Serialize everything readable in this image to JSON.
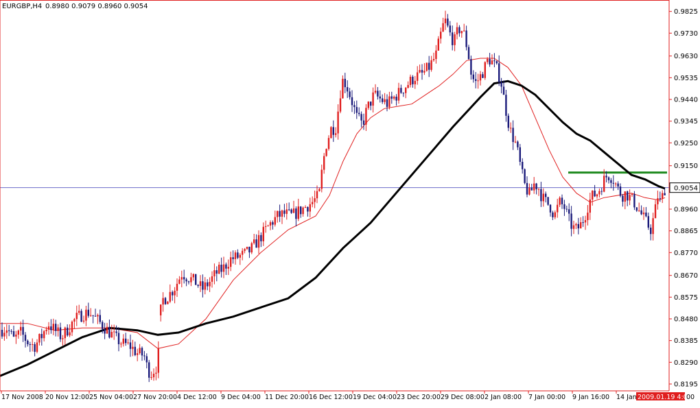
{
  "header": {
    "symbol_label": "EURGBP,H4",
    "ohlc_label": "0.8980 0.9079 0.8960 0.9054"
  },
  "colors": {
    "background": "#ffffff",
    "axis": "#e01e1e",
    "bull_candle": "#e01e1e",
    "bear_candle": "#1a1a7a",
    "ma_fast": "#e01e1e",
    "ma_slow": "#000000",
    "resistance": "#1e8a1e",
    "price_line": "#6a6ac8",
    "price_tag_bg": "#ffffff"
  },
  "chart_data": {
    "type": "candlestick",
    "symbol": "EURGBP",
    "timeframe": "H4",
    "ylim": [
      0.8165,
      0.9875
    ],
    "y_ticks": [
      0.9825,
      0.973,
      0.963,
      0.9535,
      0.944,
      0.9345,
      0.925,
      0.915,
      0.896,
      0.8865,
      0.877,
      0.867,
      0.8575,
      0.848,
      0.8385,
      0.829,
      0.8195
    ],
    "current_price": 0.9054,
    "current_price_label": "0.9054",
    "x_labels": [
      "17 Nov 2008",
      "20 Nov 12:00",
      "25 Nov 04:00",
      "27 Nov 20:00",
      "4 Dec 12:00",
      "9 Dec 04:00",
      "11 Dec 20:00",
      "16 Dec 12:00",
      "19 Dec 04:00",
      "23 Dec 20:00",
      "29 Dec 08:00",
      "2 Jan 08:00",
      "7 Jan 00:00",
      "9 Jan 16:00",
      "14 Jan"
    ],
    "x_label_cursor": "2009.01.19 4:00",
    "x_label_trailing": "00",
    "resistance_level": 0.912,
    "price_path": [
      [
        0,
        0.843
      ],
      [
        10,
        0.844
      ],
      [
        20,
        0.839
      ],
      [
        30,
        0.842
      ],
      [
        40,
        0.838
      ],
      [
        50,
        0.836
      ],
      [
        60,
        0.84
      ],
      [
        70,
        0.846
      ],
      [
        80,
        0.843
      ],
      [
        90,
        0.84
      ],
      [
        100,
        0.844
      ],
      [
        110,
        0.848
      ],
      [
        120,
        0.85
      ],
      [
        130,
        0.851
      ],
      [
        140,
        0.848
      ],
      [
        150,
        0.845
      ],
      [
        160,
        0.842
      ],
      [
        170,
        0.839
      ],
      [
        180,
        0.837
      ],
      [
        190,
        0.836
      ],
      [
        200,
        0.833
      ],
      [
        210,
        0.832
      ],
      [
        215,
        0.826
      ],
      [
        220,
        0.824
      ],
      [
        225,
        0.826
      ],
      [
        230,
        0.828
      ],
      [
        235,
        0.856
      ],
      [
        245,
        0.858
      ],
      [
        255,
        0.862
      ],
      [
        265,
        0.868
      ],
      [
        275,
        0.866
      ],
      [
        285,
        0.864
      ],
      [
        295,
        0.861
      ],
      [
        305,
        0.864
      ],
      [
        315,
        0.868
      ],
      [
        325,
        0.87
      ],
      [
        335,
        0.874
      ],
      [
        345,
        0.875
      ],
      [
        355,
        0.876
      ],
      [
        365,
        0.878
      ],
      [
        375,
        0.882
      ],
      [
        385,
        0.886
      ],
      [
        395,
        0.89
      ],
      [
        405,
        0.893
      ],
      [
        415,
        0.894
      ],
      [
        425,
        0.893
      ],
      [
        435,
        0.895
      ],
      [
        445,
        0.897
      ],
      [
        455,
        0.899
      ],
      [
        465,
        0.902
      ],
      [
        470,
        0.915
      ],
      [
        475,
        0.924
      ],
      [
        482,
        0.931
      ],
      [
        490,
        0.932
      ],
      [
        495,
        0.946
      ],
      [
        500,
        0.953
      ],
      [
        505,
        0.95
      ],
      [
        512,
        0.944
      ],
      [
        520,
        0.936
      ],
      [
        528,
        0.933
      ],
      [
        535,
        0.94
      ],
      [
        545,
        0.946
      ],
      [
        555,
        0.944
      ],
      [
        565,
        0.942
      ],
      [
        575,
        0.945
      ],
      [
        585,
        0.948
      ],
      [
        595,
        0.951
      ],
      [
        605,
        0.954
      ],
      [
        615,
        0.955
      ],
      [
        625,
        0.958
      ],
      [
        635,
        0.963
      ],
      [
        642,
        0.972
      ],
      [
        648,
        0.979
      ],
      [
        655,
        0.973
      ],
      [
        662,
        0.969
      ],
      [
        668,
        0.975
      ],
      [
        675,
        0.974
      ],
      [
        682,
        0.965
      ],
      [
        686,
        0.956
      ],
      [
        692,
        0.951
      ],
      [
        698,
        0.953
      ],
      [
        705,
        0.957
      ],
      [
        712,
        0.962
      ],
      [
        718,
        0.96
      ],
      [
        724,
        0.957
      ],
      [
        730,
        0.952
      ],
      [
        735,
        0.943
      ],
      [
        740,
        0.935
      ],
      [
        745,
        0.929
      ],
      [
        750,
        0.926
      ],
      [
        755,
        0.92
      ],
      [
        760,
        0.912
      ],
      [
        765,
        0.906
      ],
      [
        772,
        0.902
      ],
      [
        778,
        0.907
      ],
      [
        784,
        0.906
      ],
      [
        790,
        0.901
      ],
      [
        796,
        0.899
      ],
      [
        802,
        0.897
      ],
      [
        808,
        0.893
      ],
      [
        815,
        0.899
      ],
      [
        822,
        0.897
      ],
      [
        828,
        0.892
      ],
      [
        834,
        0.888
      ],
      [
        840,
        0.887
      ],
      [
        846,
        0.889
      ],
      [
        852,
        0.893
      ],
      [
        858,
        0.899
      ],
      [
        864,
        0.902
      ],
      [
        870,
        0.903
      ],
      [
        876,
        0.906
      ],
      [
        882,
        0.91
      ],
      [
        888,
        0.911
      ],
      [
        894,
        0.909
      ],
      [
        900,
        0.905
      ],
      [
        906,
        0.902
      ],
      [
        912,
        0.903
      ],
      [
        918,
        0.901
      ],
      [
        924,
        0.899
      ],
      [
        930,
        0.896
      ],
      [
        936,
        0.893
      ],
      [
        942,
        0.89
      ],
      [
        948,
        0.887
      ],
      [
        954,
        0.894
      ],
      [
        958,
        0.902
      ],
      [
        962,
        0.899
      ],
      [
        966,
        0.902
      ],
      [
        969,
        0.9054
      ]
    ],
    "ma_fast_path": [
      [
        0,
        0.846
      ],
      [
        40,
        0.846
      ],
      [
        80,
        0.843
      ],
      [
        120,
        0.844
      ],
      [
        160,
        0.844
      ],
      [
        200,
        0.842
      ],
      [
        230,
        0.835
      ],
      [
        260,
        0.837
      ],
      [
        300,
        0.848
      ],
      [
        340,
        0.865
      ],
      [
        380,
        0.877
      ],
      [
        420,
        0.887
      ],
      [
        460,
        0.893
      ],
      [
        480,
        0.902
      ],
      [
        500,
        0.917
      ],
      [
        520,
        0.929
      ],
      [
        540,
        0.936
      ],
      [
        560,
        0.94
      ],
      [
        580,
        0.941
      ],
      [
        600,
        0.942
      ],
      [
        620,
        0.946
      ],
      [
        640,
        0.95
      ],
      [
        660,
        0.955
      ],
      [
        680,
        0.961
      ],
      [
        700,
        0.962
      ],
      [
        720,
        0.962
      ],
      [
        740,
        0.958
      ],
      [
        760,
        0.95
      ],
      [
        780,
        0.936
      ],
      [
        800,
        0.922
      ],
      [
        820,
        0.91
      ],
      [
        840,
        0.903
      ],
      [
        860,
        0.899
      ],
      [
        880,
        0.901
      ],
      [
        900,
        0.902
      ],
      [
        920,
        0.903
      ],
      [
        940,
        0.901
      ],
      [
        960,
        0.9
      ],
      [
        969,
        0.901
      ]
    ],
    "ma_slow_path": [
      [
        0,
        0.823
      ],
      [
        40,
        0.828
      ],
      [
        80,
        0.834
      ],
      [
        120,
        0.84
      ],
      [
        160,
        0.844
      ],
      [
        200,
        0.843
      ],
      [
        230,
        0.841
      ],
      [
        260,
        0.842
      ],
      [
        300,
        0.846
      ],
      [
        340,
        0.849
      ],
      [
        380,
        0.853
      ],
      [
        420,
        0.857
      ],
      [
        460,
        0.866
      ],
      [
        500,
        0.879
      ],
      [
        540,
        0.89
      ],
      [
        580,
        0.904
      ],
      [
        620,
        0.918
      ],
      [
        660,
        0.932
      ],
      [
        700,
        0.945
      ],
      [
        720,
        0.951
      ],
      [
        740,
        0.952
      ],
      [
        760,
        0.95
      ],
      [
        780,
        0.946
      ],
      [
        800,
        0.94
      ],
      [
        820,
        0.934
      ],
      [
        840,
        0.929
      ],
      [
        860,
        0.926
      ],
      [
        880,
        0.921
      ],
      [
        900,
        0.916
      ],
      [
        920,
        0.911
      ],
      [
        940,
        0.909
      ],
      [
        960,
        0.906
      ],
      [
        969,
        0.905
      ]
    ]
  }
}
